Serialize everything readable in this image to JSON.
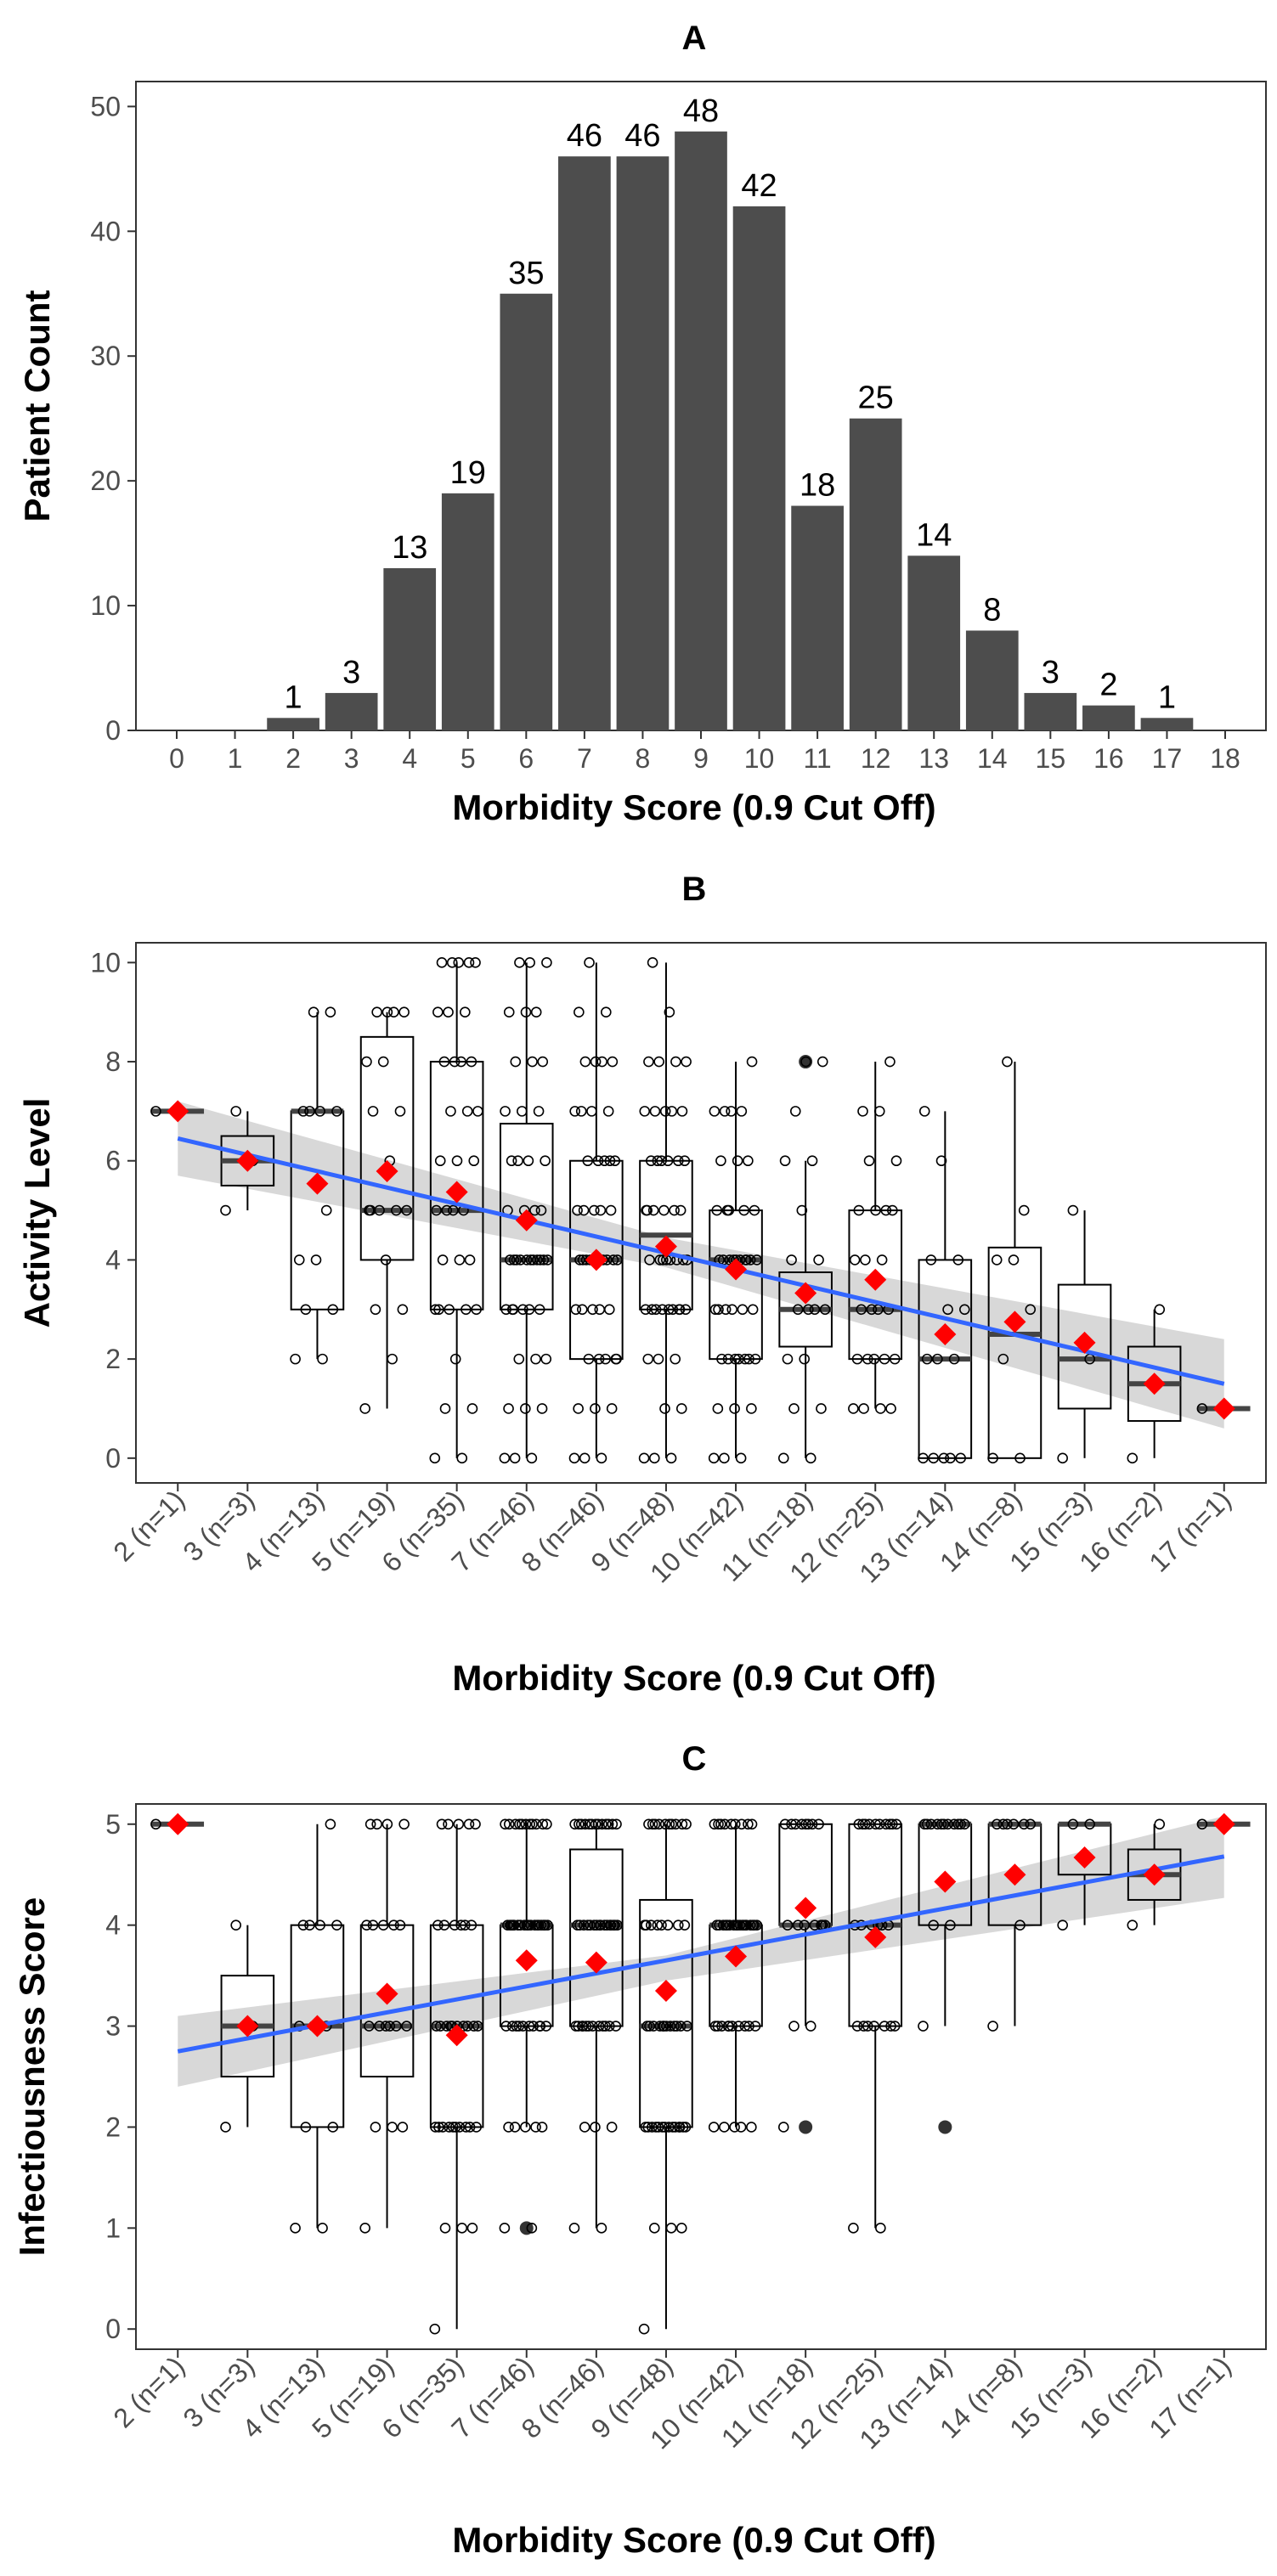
{
  "chart_data": [
    {
      "type": "bar",
      "title": "A",
      "xlabel": "Morbidity Score (0.9 Cut Off)",
      "ylabel": "Patient Count",
      "x_ticks": [
        "0",
        "1",
        "2",
        "3",
        "4",
        "5",
        "6",
        "7",
        "8",
        "9",
        "10",
        "11",
        "12",
        "13",
        "14",
        "15",
        "16",
        "17",
        "18"
      ],
      "y_ticks": [
        "0",
        "10",
        "20",
        "30",
        "40",
        "50"
      ],
      "xlim": [
        -0.7,
        18.7
      ],
      "ylim": [
        0,
        52
      ],
      "categories": [
        2,
        3,
        4,
        5,
        6,
        7,
        8,
        9,
        10,
        11,
        12,
        13,
        14,
        15,
        16,
        17
      ],
      "values": [
        1,
        3,
        13,
        19,
        35,
        46,
        46,
        48,
        42,
        18,
        25,
        14,
        8,
        3,
        2,
        1
      ],
      "data_labels": [
        "1",
        "3",
        "13",
        "19",
        "35",
        "46",
        "46",
        "48",
        "42",
        "18",
        "25",
        "14",
        "8",
        "3",
        "2",
        "1"
      ],
      "bar_color": "#4d4d4d",
      "grid": false
    },
    {
      "type": "box",
      "title": "B",
      "xlabel": "Morbidity Score (0.9 Cut Off)",
      "ylabel": "Activity Level",
      "categories": [
        "2 (n=1)",
        "3 (n=3)",
        "4 (n=13)",
        "5 (n=19)",
        "6 (n=35)",
        "7 (n=46)",
        "8 (n=46)",
        "9 (n=48)",
        "10 (n=42)",
        "11 (n=18)",
        "12 (n=25)",
        "13 (n=14)",
        "14 (n=8)",
        "15 (n=3)",
        "16 (n=2)",
        "17 (n=1)"
      ],
      "y_ticks": [
        "0",
        "2",
        "4",
        "6",
        "8",
        "10"
      ],
      "ylim": [
        -0.5,
        10.4
      ],
      "boxes": [
        {
          "q1": 7,
          "median": 7,
          "q3": 7,
          "lo": 7,
          "hi": 7
        },
        {
          "q1": 5.5,
          "median": 6,
          "q3": 6.5,
          "lo": 5,
          "hi": 7
        },
        {
          "q1": 3,
          "median": 7,
          "q3": 7,
          "lo": 2,
          "hi": 9
        },
        {
          "q1": 4,
          "median": 5,
          "q3": 8.5,
          "lo": 1,
          "hi": 9
        },
        {
          "q1": 3,
          "median": 5,
          "q3": 8,
          "lo": 0,
          "hi": 10
        },
        {
          "q1": 3,
          "median": 4,
          "q3": 6.75,
          "lo": 0,
          "hi": 10
        },
        {
          "q1": 2,
          "median": 4,
          "q3": 6,
          "lo": 0,
          "hi": 10
        },
        {
          "q1": 3,
          "median": 4.5,
          "q3": 6,
          "lo": 0,
          "hi": 10
        },
        {
          "q1": 2,
          "median": 4,
          "q3": 5,
          "lo": 0,
          "hi": 8
        },
        {
          "q1": 2.25,
          "median": 3,
          "q3": 3.75,
          "lo": 0,
          "hi": 6
        },
        {
          "q1": 2,
          "median": 3,
          "q3": 5,
          "lo": 1,
          "hi": 8
        },
        {
          "q1": 0,
          "median": 2,
          "q3": 4,
          "lo": 0,
          "hi": 7
        },
        {
          "q1": 0,
          "median": 2.5,
          "q3": 4.25,
          "lo": 0,
          "hi": 8
        },
        {
          "q1": 1,
          "median": 2,
          "q3": 3.5,
          "lo": 0,
          "hi": 5
        },
        {
          "q1": 0.75,
          "median": 1.5,
          "q3": 2.25,
          "lo": 0,
          "hi": 3
        },
        {
          "q1": 1,
          "median": 1,
          "q3": 1,
          "lo": 1,
          "hi": 1
        }
      ],
      "outliers": [
        [],
        [],
        [],
        [],
        [],
        [],
        [],
        [],
        [],
        [
          8
        ],
        [],
        [],
        [],
        [],
        [],
        []
      ],
      "means": [
        7,
        6,
        5.54,
        5.79,
        5.37,
        4.8,
        4,
        4.27,
        3.81,
        3.33,
        3.6,
        2.5,
        2.75,
        2.33,
        1.5,
        1
      ],
      "points": [
        [
          7
        ],
        [
          5,
          6,
          7
        ],
        [
          2,
          2,
          3,
          3,
          4,
          4,
          5,
          7,
          7,
          7,
          7,
          9,
          9
        ],
        [
          1,
          2,
          3,
          3,
          4,
          5,
          5,
          5,
          5,
          6,
          7,
          7,
          8,
          8,
          9,
          9,
          9,
          9,
          5
        ],
        [
          0,
          0,
          1,
          1,
          2,
          3,
          3,
          3,
          3,
          4,
          4,
          4,
          5,
          5,
          5,
          5,
          6,
          6,
          6,
          7,
          7,
          7,
          8,
          8,
          8,
          8,
          9,
          9,
          9,
          10,
          10,
          10,
          10,
          10,
          3
        ],
        [
          0,
          0,
          0,
          1,
          1,
          1,
          2,
          2,
          2,
          3,
          3,
          3,
          3,
          3,
          4,
          4,
          4,
          4,
          4,
          4,
          4,
          4,
          4,
          4,
          5,
          5,
          5,
          5,
          6,
          6,
          6,
          6,
          7,
          7,
          7,
          8,
          8,
          8,
          9,
          9,
          9,
          10,
          10,
          10,
          3,
          4
        ],
        [
          0,
          0,
          0,
          1,
          1,
          1,
          2,
          2,
          2,
          2,
          3,
          3,
          3,
          3,
          4,
          4,
          4,
          4,
          4,
          4,
          4,
          4,
          5,
          5,
          5,
          5,
          5,
          6,
          6,
          6,
          6,
          7,
          7,
          7,
          7,
          8,
          8,
          8,
          8,
          9,
          9,
          10,
          2,
          3,
          4,
          6
        ],
        [
          0,
          0,
          0,
          1,
          1,
          2,
          2,
          2,
          3,
          3,
          3,
          3,
          3,
          3,
          3,
          3,
          4,
          4,
          4,
          4,
          4,
          4,
          4,
          5,
          5,
          5,
          5,
          5,
          6,
          6,
          6,
          6,
          6,
          6,
          7,
          7,
          7,
          7,
          7,
          8,
          8,
          8,
          8,
          9,
          10,
          3,
          4,
          5
        ],
        [
          0,
          0,
          0,
          1,
          1,
          1,
          2,
          2,
          2,
          2,
          2,
          2,
          3,
          3,
          3,
          3,
          3,
          4,
          4,
          4,
          4,
          4,
          4,
          4,
          4,
          4,
          5,
          5,
          5,
          5,
          6,
          6,
          6,
          7,
          7,
          7,
          7,
          8,
          2,
          3,
          4,
          5
        ],
        [
          0,
          0,
          1,
          1,
          2,
          2,
          3,
          3,
          3,
          3,
          4,
          4,
          5,
          6,
          6,
          7,
          8,
          8
        ],
        [
          1,
          1,
          1,
          1,
          2,
          2,
          2,
          2,
          2,
          3,
          3,
          3,
          3,
          4,
          4,
          4,
          5,
          5,
          5,
          5,
          6,
          6,
          7,
          7,
          8
        ],
        [
          0,
          0,
          0,
          0,
          0,
          2,
          2,
          2,
          3,
          3,
          4,
          4,
          6,
          7
        ],
        [
          0,
          0,
          2,
          3,
          4,
          4,
          5,
          8
        ],
        [
          0,
          2,
          5
        ],
        [
          0,
          3
        ],
        [
          1
        ]
      ],
      "trend": {
        "from": {
          "x": 2,
          "y": 6.45
        },
        "to": {
          "x": 17,
          "y": 1.5
        }
      },
      "band": [
        {
          "x": 2,
          "lo": 5.7,
          "hi": 7.2
        },
        {
          "x": 9,
          "lo": 3.85,
          "hi": 4.45
        },
        {
          "x": 17,
          "lo": 0.6,
          "hi": 2.4
        }
      ],
      "mean_color": "#ff0000",
      "trend_color": "#3366ff",
      "band_color": "#bebebe"
    },
    {
      "type": "box",
      "title": "C",
      "xlabel": "Morbidity Score (0.9 Cut Off)",
      "ylabel": "Infectiousness Score",
      "categories": [
        "2 (n=1)",
        "3 (n=3)",
        "4 (n=13)",
        "5 (n=19)",
        "6 (n=35)",
        "7 (n=46)",
        "8 (n=46)",
        "9 (n=48)",
        "10 (n=42)",
        "11 (n=18)",
        "12 (n=25)",
        "13 (n=14)",
        "14 (n=8)",
        "15 (n=3)",
        "16 (n=2)",
        "17 (n=1)"
      ],
      "y_ticks": [
        "0",
        "1",
        "2",
        "3",
        "4",
        "5"
      ],
      "ylim": [
        -0.2,
        5.2
      ],
      "boxes": [
        {
          "q1": 5,
          "median": 5,
          "q3": 5,
          "lo": 5,
          "hi": 5
        },
        {
          "q1": 2.5,
          "median": 3,
          "q3": 3.5,
          "lo": 2,
          "hi": 4
        },
        {
          "q1": 2,
          "median": 3,
          "q3": 4,
          "lo": 1,
          "hi": 5
        },
        {
          "q1": 2.5,
          "median": 3,
          "q3": 4,
          "lo": 1,
          "hi": 5
        },
        {
          "q1": 2,
          "median": 3,
          "q3": 4,
          "lo": 0,
          "hi": 5
        },
        {
          "q1": 3,
          "median": 4,
          "q3": 4,
          "lo": 2,
          "hi": 5
        },
        {
          "q1": 3,
          "median": 4,
          "q3": 4.75,
          "lo": 1,
          "hi": 5
        },
        {
          "q1": 2,
          "median": 3,
          "q3": 4.25,
          "lo": 0,
          "hi": 5
        },
        {
          "q1": 3,
          "median": 4,
          "q3": 4,
          "lo": 2,
          "hi": 5
        },
        {
          "q1": 4,
          "median": 4,
          "q3": 5,
          "lo": 3,
          "hi": 5
        },
        {
          "q1": 3,
          "median": 4,
          "q3": 5,
          "lo": 1,
          "hi": 5
        },
        {
          "q1": 4,
          "median": 5,
          "q3": 5,
          "lo": 3,
          "hi": 5
        },
        {
          "q1": 4,
          "median": 5,
          "q3": 5,
          "lo": 3,
          "hi": 5
        },
        {
          "q1": 4.5,
          "median": 5,
          "q3": 5,
          "lo": 4,
          "hi": 5
        },
        {
          "q1": 4.25,
          "median": 4.5,
          "q3": 4.75,
          "lo": 4,
          "hi": 5
        },
        {
          "q1": 5,
          "median": 5,
          "q3": 5,
          "lo": 5,
          "hi": 5
        }
      ],
      "outliers": [
        [],
        [],
        [],
        [],
        [],
        [
          1
        ],
        [],
        [],
        [],
        [
          2
        ],
        [],
        [
          2
        ],
        [],
        [],
        [],
        []
      ],
      "means": [
        5,
        3,
        3,
        3.32,
        2.91,
        3.65,
        3.63,
        3.35,
        3.69,
        4.17,
        3.88,
        4.43,
        4.5,
        4.67,
        4.5,
        5
      ],
      "points": [
        [
          5
        ],
        [
          2,
          3,
          4
        ],
        [
          1,
          1,
          2,
          2,
          3,
          3,
          3,
          4,
          4,
          4,
          4,
          5,
          3
        ],
        [
          1,
          2,
          2,
          2,
          3,
          3,
          3,
          3,
          3,
          3,
          4,
          4,
          4,
          4,
          4,
          5,
          5,
          5,
          5
        ],
        [
          0,
          1,
          1,
          1,
          2,
          2,
          2,
          2,
          2,
          2,
          2,
          2,
          2,
          3,
          3,
          3,
          3,
          3,
          3,
          3,
          3,
          3,
          4,
          4,
          4,
          4,
          4,
          4,
          5,
          5,
          5,
          5,
          5,
          3,
          2
        ],
        [
          1,
          1,
          2,
          2,
          2,
          2,
          2,
          3,
          3,
          3,
          3,
          3,
          3,
          3,
          3,
          3,
          4,
          4,
          4,
          4,
          4,
          4,
          4,
          4,
          4,
          4,
          4,
          4,
          4,
          4,
          4,
          4,
          4,
          5,
          5,
          5,
          5,
          5,
          5,
          5,
          5,
          5,
          5,
          5,
          4,
          3
        ],
        [
          1,
          1,
          2,
          2,
          2,
          3,
          3,
          3,
          3,
          3,
          3,
          3,
          3,
          3,
          3,
          3,
          4,
          4,
          4,
          4,
          4,
          4,
          4,
          4,
          4,
          4,
          4,
          4,
          4,
          4,
          5,
          5,
          5,
          5,
          5,
          5,
          5,
          5,
          5,
          5,
          5,
          5,
          5,
          4,
          3,
          4
        ],
        [
          0,
          1,
          1,
          1,
          2,
          2,
          2,
          2,
          2,
          2,
          2,
          2,
          2,
          2,
          2,
          2,
          2,
          3,
          3,
          3,
          3,
          3,
          3,
          3,
          3,
          3,
          3,
          3,
          4,
          4,
          4,
          4,
          4,
          4,
          4,
          5,
          5,
          5,
          5,
          5,
          5,
          5,
          5,
          5,
          5,
          2,
          3,
          4
        ],
        [
          2,
          2,
          2,
          2,
          2,
          3,
          3,
          3,
          3,
          3,
          3,
          3,
          3,
          3,
          4,
          4,
          4,
          4,
          4,
          4,
          4,
          4,
          4,
          4,
          4,
          4,
          4,
          4,
          4,
          4,
          4,
          5,
          5,
          5,
          5,
          5,
          5,
          5,
          5,
          5,
          4,
          3
        ],
        [
          2,
          3,
          3,
          4,
          4,
          4,
          4,
          4,
          4,
          5,
          5,
          5,
          5,
          5,
          5,
          5,
          4,
          5
        ],
        [
          1,
          1,
          3,
          3,
          3,
          3,
          3,
          3,
          3,
          4,
          4,
          4,
          4,
          4,
          4,
          5,
          5,
          5,
          5,
          5,
          5,
          5,
          5,
          5,
          5
        ],
        [
          3,
          4,
          4,
          5,
          5,
          5,
          5,
          5,
          5,
          5,
          5,
          5,
          5,
          5
        ],
        [
          3,
          4,
          5,
          5,
          5,
          5,
          5,
          5
        ],
        [
          4,
          5,
          5
        ],
        [
          4,
          5
        ],
        [
          5
        ]
      ],
      "trend": {
        "from": {
          "x": 2,
          "y": 2.75
        },
        "to": {
          "x": 17,
          "y": 4.68
        }
      },
      "band": [
        {
          "x": 2,
          "lo": 2.4,
          "hi": 3.1
        },
        {
          "x": 9,
          "lo": 3.45,
          "hi": 3.7
        },
        {
          "x": 17,
          "lo": 4.27,
          "hi": 5.08
        }
      ],
      "mean_color": "#ff0000",
      "trend_color": "#3366ff",
      "band_color": "#bebebe"
    }
  ]
}
